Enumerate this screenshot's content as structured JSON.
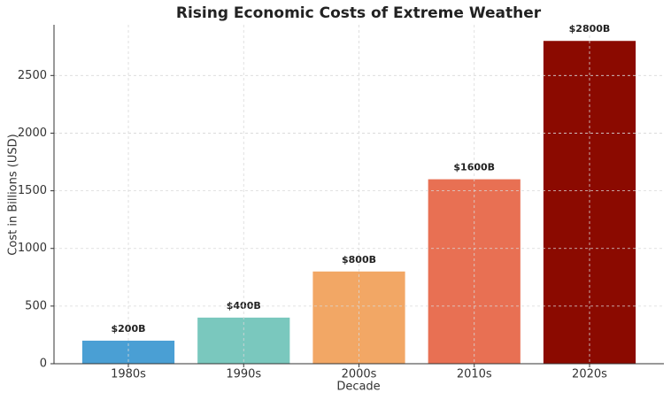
{
  "chart_data": {
    "type": "bar",
    "title": "Rising Economic Costs of Extreme Weather",
    "x_label": "Decade",
    "y_label": "Cost in Billions (USD)",
    "categories": [
      "1980s",
      "1990s",
      "2000s",
      "2010s",
      "2020s"
    ],
    "values": [
      200,
      400,
      800,
      1600,
      2800
    ],
    "value_labels": [
      "$200B",
      "$400B",
      "$800B",
      "$1600B",
      "$2800B"
    ],
    "colors": [
      "#4a9fd4",
      "#7ac8be",
      "#f2a765",
      "#e87053",
      "#8b0a00"
    ],
    "ylim": [
      0,
      2940
    ],
    "yticks": [
      0,
      500,
      1000,
      1500,
      2000,
      2500
    ],
    "grid": true
  }
}
